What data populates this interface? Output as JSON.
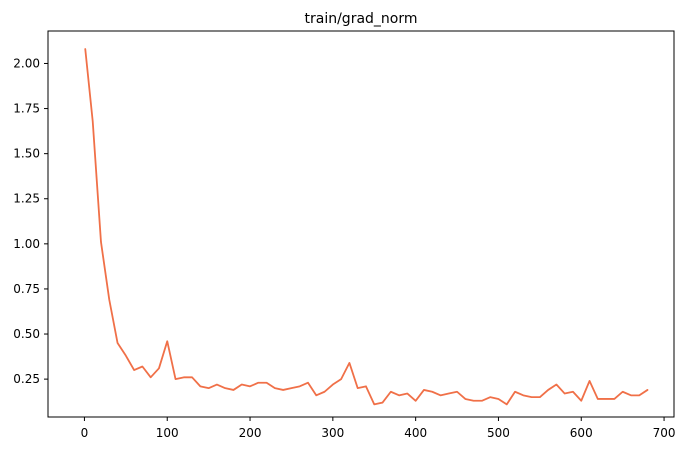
{
  "chart_data": {
    "type": "line",
    "title": "train/grad_norm",
    "xlabel": "",
    "ylabel": "",
    "xlim": [
      -44,
      712
    ],
    "ylim": [
      0.04,
      2.18
    ],
    "x_ticks": [
      0,
      100,
      200,
      300,
      400,
      500,
      600,
      700
    ],
    "y_ticks": [
      0.25,
      0.5,
      0.75,
      1.0,
      1.25,
      1.5,
      1.75,
      2.0
    ],
    "x_tick_labels": [
      "0",
      "100",
      "200",
      "300",
      "400",
      "500",
      "600",
      "700"
    ],
    "y_tick_labels": [
      "0.25",
      "0.50",
      "0.75",
      "1.00",
      "1.25",
      "1.50",
      "1.75",
      "2.00"
    ],
    "grid": false,
    "legend": "none",
    "series": [
      {
        "color": "#f07048",
        "x": [
          1,
          10,
          20,
          30,
          40,
          50,
          60,
          70,
          80,
          90,
          100,
          110,
          120,
          130,
          140,
          150,
          160,
          170,
          180,
          190,
          200,
          210,
          220,
          230,
          240,
          250,
          260,
          270,
          280,
          290,
          300,
          310,
          320,
          330,
          340,
          350,
          360,
          370,
          380,
          390,
          400,
          410,
          420,
          430,
          440,
          450,
          460,
          470,
          480,
          490,
          500,
          510,
          520,
          530,
          540,
          550,
          560,
          570,
          580,
          590,
          600,
          610,
          620,
          630,
          640,
          650,
          660,
          670,
          680
        ],
        "values": [
          2.08,
          1.68,
          1.01,
          0.69,
          0.45,
          0.38,
          0.3,
          0.32,
          0.26,
          0.31,
          0.46,
          0.25,
          0.26,
          0.26,
          0.21,
          0.2,
          0.22,
          0.2,
          0.19,
          0.22,
          0.21,
          0.23,
          0.23,
          0.2,
          0.19,
          0.2,
          0.21,
          0.23,
          0.16,
          0.18,
          0.22,
          0.25,
          0.34,
          0.2,
          0.21,
          0.11,
          0.12,
          0.18,
          0.16,
          0.17,
          0.13,
          0.19,
          0.18,
          0.16,
          0.17,
          0.18,
          0.14,
          0.13,
          0.13,
          0.15,
          0.14,
          0.11,
          0.18,
          0.16,
          0.15,
          0.15,
          0.19,
          0.22,
          0.17,
          0.18,
          0.13,
          0.24,
          0.14,
          0.14,
          0.14,
          0.18,
          0.16,
          0.16,
          0.19
        ]
      }
    ]
  }
}
